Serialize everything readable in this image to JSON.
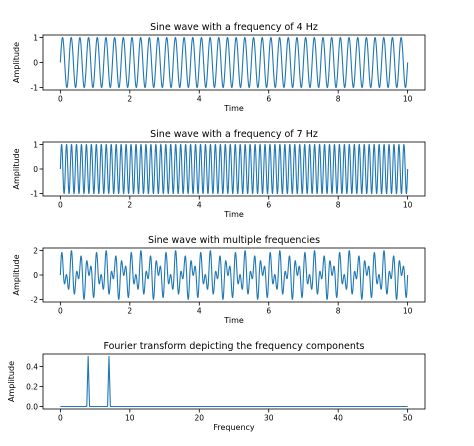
{
  "chart_data": [
    {
      "type": "line",
      "title": "Sine wave with a frequency of 4 Hz",
      "xlabel": "Time",
      "ylabel": "Amplitude",
      "xlim": [
        -0.5,
        10.5
      ],
      "ylim": [
        -1.1,
        1.1
      ],
      "xticks": [
        0,
        2,
        4,
        6,
        8,
        10
      ],
      "yticks": [
        -1,
        0,
        1
      ],
      "color": "#1f77b4",
      "series": [
        {
          "function": "sine",
          "components": [
            {
              "frequency": 4,
              "amplitude": 1
            }
          ],
          "x_start": 0,
          "x_end": 10
        }
      ]
    },
    {
      "type": "line",
      "title": "Sine wave with a frequency of 7 Hz",
      "xlabel": "Time",
      "ylabel": "Amplitude",
      "xlim": [
        -0.5,
        10.5
      ],
      "ylim": [
        -1.1,
        1.1
      ],
      "xticks": [
        0,
        2,
        4,
        6,
        8,
        10
      ],
      "yticks": [
        -1,
        0,
        1
      ],
      "color": "#1f77b4",
      "series": [
        {
          "function": "sine",
          "components": [
            {
              "frequency": 7,
              "amplitude": 1
            }
          ],
          "x_start": 0,
          "x_end": 10
        }
      ]
    },
    {
      "type": "line",
      "title": "Sine wave with multiple frequencies",
      "xlabel": "Time",
      "ylabel": "Amplitude",
      "xlim": [
        -0.5,
        10.5
      ],
      "ylim": [
        -2.2,
        2.2
      ],
      "xticks": [
        0,
        2,
        4,
        6,
        8,
        10
      ],
      "yticks": [
        -2,
        0,
        2
      ],
      "color": "#1f77b4",
      "series": [
        {
          "function": "sine",
          "components": [
            {
              "frequency": 4,
              "amplitude": 1
            },
            {
              "frequency": 7,
              "amplitude": 1
            }
          ],
          "x_start": 0,
          "x_end": 10
        }
      ]
    },
    {
      "type": "line",
      "title": "Fourier transform depicting the frequency components",
      "xlabel": "Frequency",
      "ylabel": "Amplitude",
      "xlim": [
        -2.5,
        52.5
      ],
      "ylim": [
        -0.025,
        0.525
      ],
      "xticks": [
        0,
        10,
        20,
        30,
        40,
        50
      ],
      "yticks": [
        0.0,
        0.2,
        0.4
      ],
      "yticklabels": [
        "0.0",
        "0.2",
        "0.4"
      ],
      "color": "#1f77b4",
      "series": [
        {
          "x_range": [
            0,
            50
          ],
          "baseline": 0.0,
          "peaks": [
            {
              "x": 4,
              "y": 0.5
            },
            {
              "x": 7,
              "y": 0.5
            }
          ]
        }
      ]
    }
  ]
}
